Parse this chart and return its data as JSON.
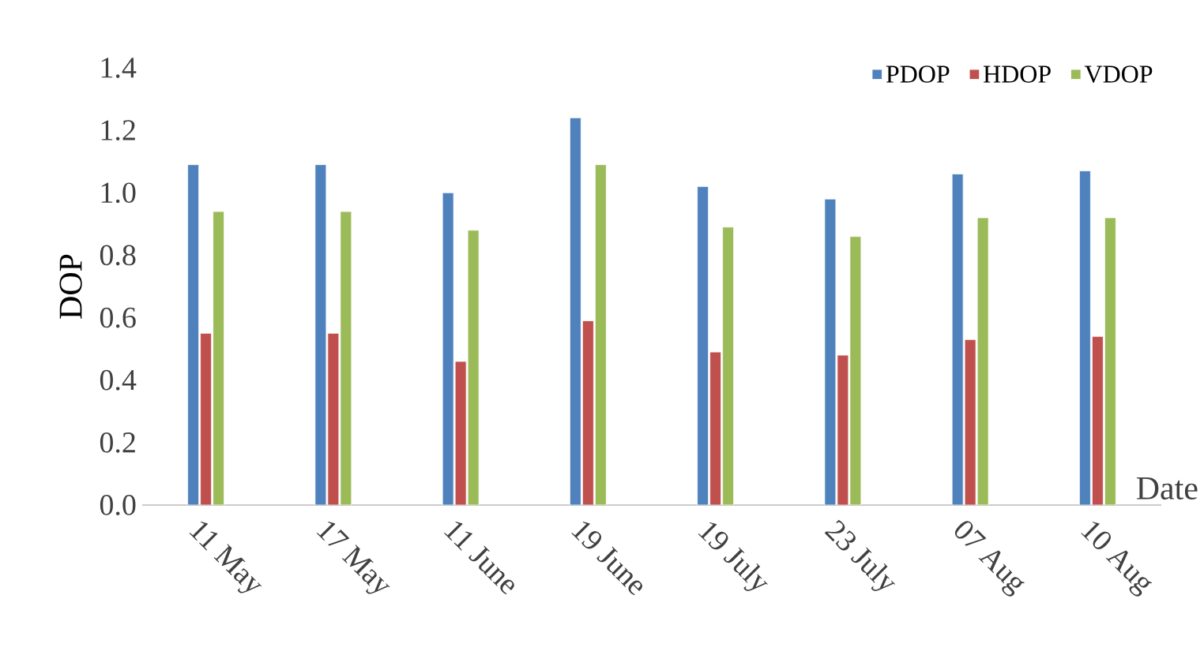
{
  "chart_data": {
    "type": "bar",
    "xlabel": "Date",
    "ylabel": "DOP",
    "categories": [
      "11 May",
      "17 May",
      "11 June",
      "19 June",
      "19 July",
      "23 July",
      "07 Aug",
      "10 Aug"
    ],
    "series": [
      {
        "name": "PDOP",
        "color": "#4f81bd",
        "values": [
          1.09,
          1.09,
          1.0,
          1.24,
          1.02,
          0.98,
          1.06,
          1.07
        ]
      },
      {
        "name": "HDOP",
        "color": "#c0504d",
        "values": [
          0.55,
          0.55,
          0.46,
          0.59,
          0.49,
          0.48,
          0.53,
          0.54
        ]
      },
      {
        "name": "VDOP",
        "color": "#9bbb59",
        "values": [
          0.94,
          0.94,
          0.88,
          1.09,
          0.89,
          0.86,
          0.92,
          0.92
        ]
      }
    ],
    "ylim": [
      0,
      1.4
    ],
    "yticks": [
      {
        "value": 0,
        "label": "0.0"
      },
      {
        "value": 0.2,
        "label": "0.2"
      },
      {
        "value": 0.4,
        "label": "0.4"
      },
      {
        "value": 0.6,
        "label": "0.6"
      },
      {
        "value": 0.8,
        "label": "0.8"
      },
      {
        "value": 1.0,
        "label": "1.0"
      },
      {
        "value": 1.2,
        "label": "1.2"
      },
      {
        "value": 1.4,
        "label": "1.4"
      }
    ],
    "legend": "top right"
  }
}
